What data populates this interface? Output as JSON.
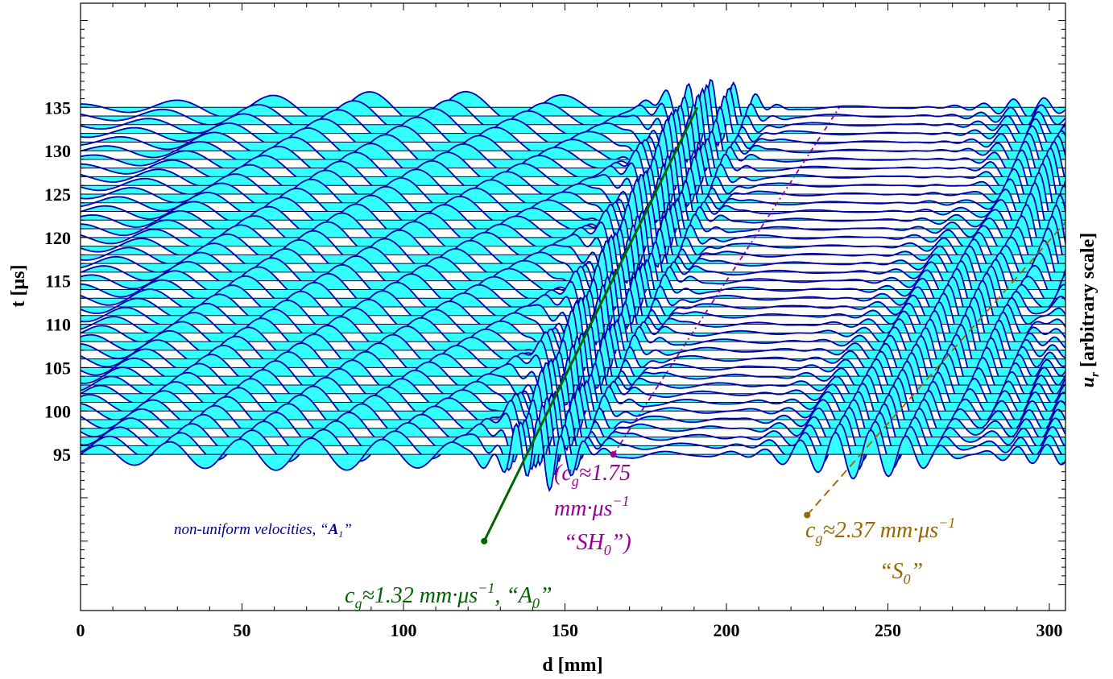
{
  "chart_data": {
    "type": "line",
    "xlabel": "d [mm]",
    "ylabel": "t [μs]",
    "ylabel_right": "u_r [arbitrary scale]",
    "xlim": [
      0,
      305
    ],
    "ylim": [
      77,
      147
    ],
    "x_ticks": [
      0,
      50,
      100,
      150,
      200,
      250,
      300
    ],
    "y_ticks": [
      95,
      100,
      105,
      110,
      115,
      120,
      125,
      130,
      135
    ],
    "traces": {
      "t_start": 95,
      "t_end": 135,
      "t_step": 1
    },
    "group_velocity_lines": [
      {
        "name": "A0",
        "cg": 1.32,
        "d0": 125,
        "t0": 85,
        "color": "#006400",
        "text": "c_g≈1.32 mm·μs⁻¹, “A₀”"
      },
      {
        "name": "SH0",
        "cg": 1.75,
        "d0": 165,
        "t0": 95,
        "color": "#990099",
        "text": "(c_g≈1.75 mm·μs⁻¹ “SH₀”)"
      },
      {
        "name": "S0",
        "cg": 2.37,
        "d0": 225,
        "t0": 88,
        "color": "#996600",
        "text": "c_g≈2.37 mm·μs⁻¹ “S₀”"
      }
    ],
    "annotations": [
      {
        "text": "non-uniform velocities, “A₁”",
        "color": "#00008b"
      }
    ]
  },
  "colors": {
    "fill": "#33ffff",
    "trace": "#0000b3",
    "baseline": "#000033",
    "a0": "#006400",
    "sh0": "#990099",
    "s0": "#996600",
    "a1": "#00008b"
  },
  "labels": {
    "x_axis": "d [mm]",
    "y_axis": "t [μs]",
    "y_axis_right": "u",
    "y_axis_right_sub": "r",
    "y_axis_right_rest": " [arbitrary scale]",
    "a0_line1": "c",
    "a0_sub": "g",
    "a0_rest": "≈1.32 mm·μs",
    "a0_sup": "−1",
    "a0_tail": ",  “A",
    "a0_tail_sub": "0",
    "a0_close": "”",
    "sh0_line1": "(c",
    "sh0_sub": "g",
    "sh0_rest": "≈1.75",
    "sh0_line2": "mm·μs",
    "sh0_sup": "−1",
    "sh0_line3": "“SH",
    "sh0_line3_sub": "0",
    "sh0_line3_close": "”)",
    "s0_line1": "c",
    "s0_sub": "g",
    "s0_rest": "≈2.37 mm·μs",
    "s0_sup": "−1",
    "s0_line2": "“S",
    "s0_line2_sub": "0",
    "s0_line2_close": "”",
    "a1_text": "non-uniform velocities, “",
    "a1_it": "A",
    "a1_sub": "1",
    "a1_close": "”"
  }
}
